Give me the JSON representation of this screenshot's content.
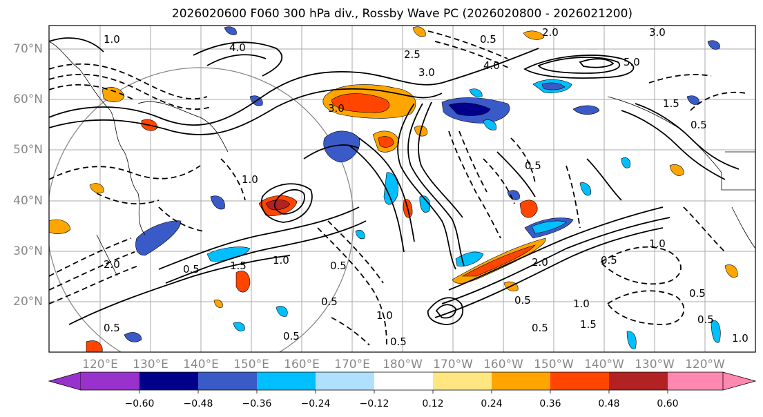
{
  "title": "2026020600 F060 300 hPa div., Rossby Wave PC (2026020800 - 2026021200)",
  "lat_labels": [
    "70°N",
    "60°N",
    "50°N",
    "40°N",
    "30°N",
    "20°N"
  ],
  "lon_labels": [
    "120°E",
    "130°E",
    "140°E",
    "150°E",
    "160°E",
    "170°E",
    "180°W",
    "170°W",
    "160°W",
    "150°W",
    "140°W",
    "130°W",
    "120°W"
  ],
  "colorbar": {
    "tick_labels": [
      "−0.60",
      "−0.48",
      "−0.36",
      "−0.24",
      "−0.12",
      "0.12",
      "0.24",
      "0.36",
      "0.48",
      "0.60"
    ],
    "colors": [
      "#9932cc",
      "#00008b",
      "#3a5bc7",
      "#00bfff",
      "#b0e0ff",
      "#ffffff",
      "#ffe680",
      "#ffa500",
      "#ff4500",
      "#b22222",
      "#ff88b0"
    ]
  },
  "contour_labels": [
    "3.0",
    "0.5",
    "2.0",
    "4.0",
    "5.0",
    "1.0",
    "2.5",
    "1.5",
    "3.0",
    "0.5",
    "1.0",
    "0.5",
    "1.5",
    "1.0",
    "0.5",
    "0.5",
    "0.5",
    "0.5",
    "1.0",
    "0.5",
    "0.5",
    "1.0",
    "1.5",
    "2.0",
    "0.5",
    "0.5",
    "2.0",
    "4.0",
    "3.0",
    "0.5",
    "1.0",
    "0.5",
    "0.5",
    "1.0"
  ]
}
